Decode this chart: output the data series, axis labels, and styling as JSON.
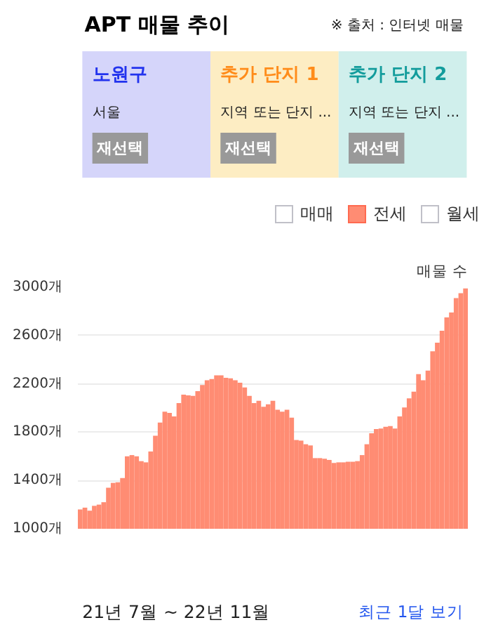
{
  "chart_data": {
    "type": "bar",
    "title": "APT 매물 추이",
    "ylabel": "매물 수",
    "annotations": [
      "※ 출처 : 인터넷 매물",
      "노원구",
      "추가 단지 1",
      "추가 단지 2",
      "서울",
      "지역 또는 단지 ...",
      "지역 또는 단지 ...",
      "재선택",
      "재선택",
      "재선택",
      "매매",
      "월세",
      "21년 7월 ~ 22년 11월",
      "최근 1달 보기"
    ],
    "categories": [
      null,
      null,
      null,
      null,
      null,
      null,
      null,
      null,
      null,
      null,
      null,
      null,
      null,
      null,
      null,
      null,
      null,
      null,
      null,
      null,
      null,
      null,
      null,
      null,
      null,
      null,
      null,
      null,
      null,
      null,
      null,
      null,
      null,
      null,
      null,
      null,
      null,
      null,
      null,
      null,
      null,
      null,
      null,
      null,
      null,
      null,
      null,
      null,
      null,
      null,
      null,
      null,
      null,
      null,
      null,
      null,
      null,
      null,
      null,
      null,
      null,
      null,
      null,
      null,
      null,
      null,
      null,
      null,
      null,
      null,
      null,
      null,
      null,
      null,
      null,
      null,
      null,
      null,
      null,
      null,
      null,
      null,
      null
    ],
    "series": [
      {
        "name": "전세",
        "color": "#ff8c73",
        "values": [
          1160,
          1175,
          1150,
          1190,
          1200,
          1220,
          1340,
          1380,
          1385,
          1420,
          1600,
          1610,
          1600,
          1560,
          1550,
          1640,
          1770,
          1880,
          1970,
          1960,
          1930,
          2040,
          2110,
          2105,
          2100,
          2140,
          2190,
          2230,
          2240,
          2270,
          2270,
          2250,
          2245,
          2230,
          2210,
          2170,
          2100,
          2040,
          2060,
          2010,
          2030,
          2060,
          1985,
          1970,
          1985,
          1920,
          1735,
          1730,
          1700,
          1690,
          1585,
          1585,
          1580,
          1570,
          1545,
          1550,
          1550,
          1555,
          1555,
          1560,
          1610,
          1700,
          1790,
          1825,
          1830,
          1845,
          1850,
          1830,
          1930,
          2005,
          2080,
          2135,
          2280,
          2230,
          2310,
          2470,
          2540,
          2640,
          2750,
          2790,
          2910,
          2950,
          2990
        ]
      }
    ],
    "ylim": [
      1000,
      3000
    ],
    "yticks": [
      {
        "value": 1000,
        "label": "1000개"
      },
      {
        "value": 1400,
        "label": "1400개"
      },
      {
        "value": 1800,
        "label": "1800개"
      },
      {
        "value": 2200,
        "label": "2200개"
      },
      {
        "value": 2600,
        "label": "2600개"
      },
      {
        "value": 3000,
        "label": "3000개"
      }
    ],
    "grid": "y",
    "legend": "top right",
    "tick_labels": "y"
  }
}
